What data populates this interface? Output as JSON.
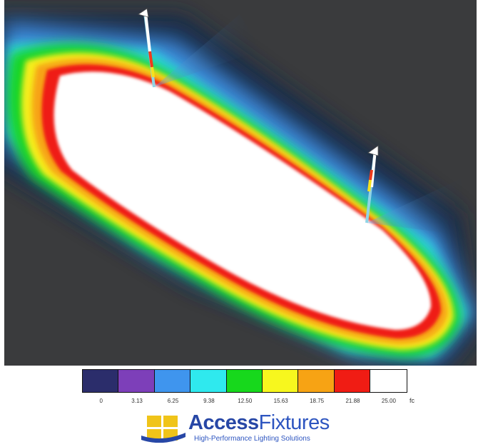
{
  "legend": {
    "swatch_colors": [
      "#2b2d6b",
      "#7d3fb9",
      "#3f95ee",
      "#2fe9ee",
      "#17d81c",
      "#f7f71e",
      "#f7a314",
      "#f01c14",
      "#ffffff"
    ],
    "ticks": [
      "0",
      "3.13",
      "6.25",
      "9.38",
      "12.50",
      "15.63",
      "18.75",
      "21.88",
      "25.00"
    ],
    "unit": "fc"
  },
  "logo": {
    "name_bold": "Access",
    "name_light": "Fixtures",
    "tagline": "High-Performance Lighting Solutions",
    "colors": {
      "brand_blue": "#2747a6",
      "mark_yellow": "#f0c419"
    }
  }
}
